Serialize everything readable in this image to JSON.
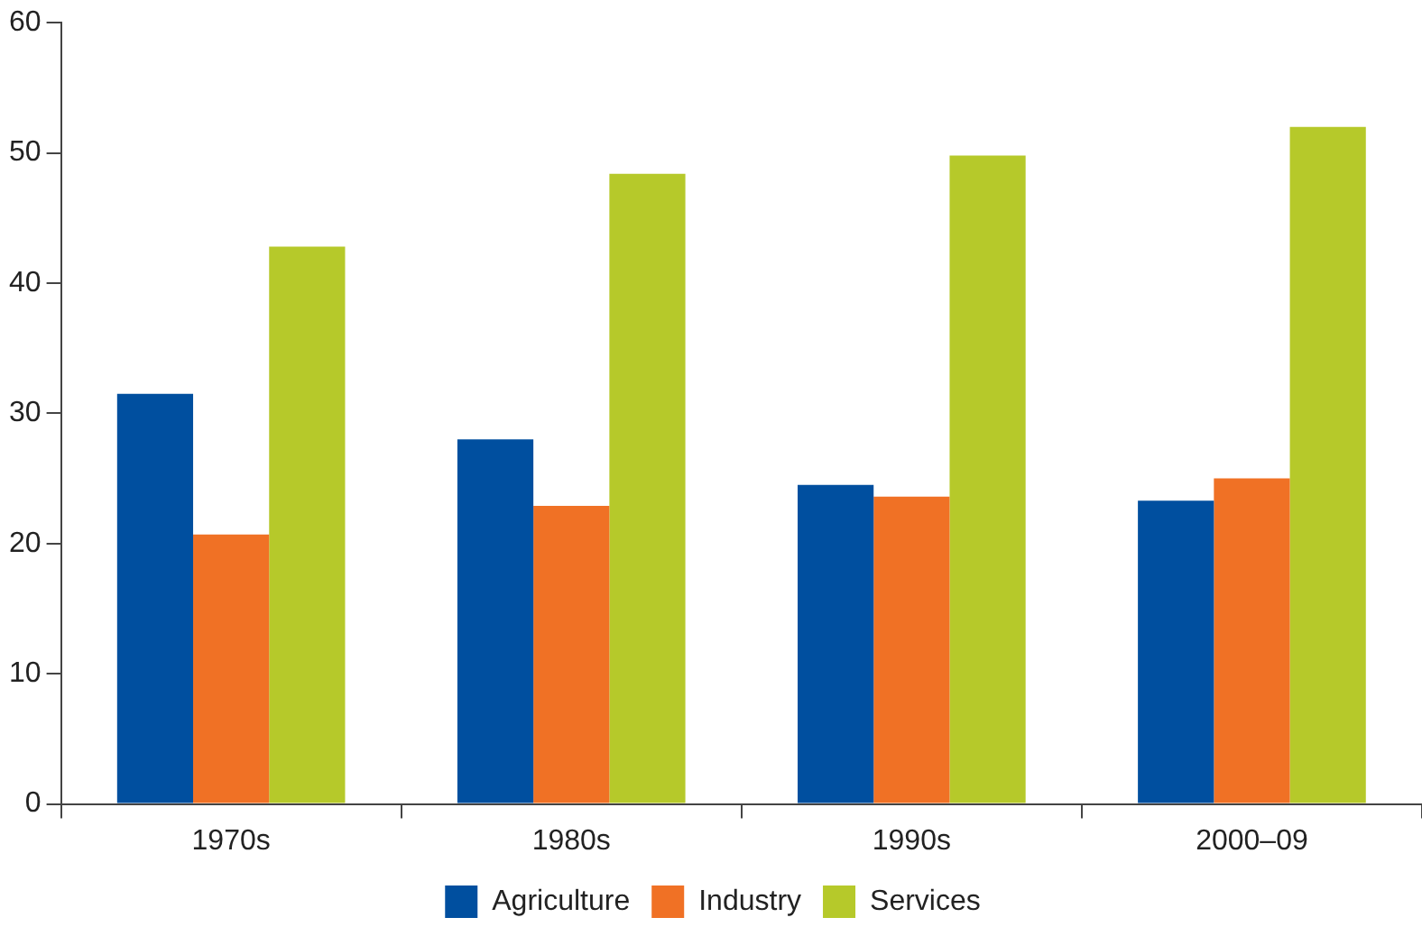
{
  "chart_data": {
    "type": "bar",
    "categories": [
      "1970s",
      "1980s",
      "1990s",
      "2000–09"
    ],
    "series": [
      {
        "name": "Agriculture",
        "color": "#004f9f",
        "values": [
          31.5,
          28.0,
          24.5,
          23.3
        ]
      },
      {
        "name": "Industry",
        "color": "#f07125",
        "values": [
          20.7,
          22.9,
          23.6,
          25.0
        ]
      },
      {
        "name": "Services",
        "color": "#b6c92a",
        "values": [
          42.8,
          48.4,
          49.8,
          52.0
        ]
      }
    ],
    "ylim": [
      0,
      60
    ],
    "yticks": [
      0,
      10,
      20,
      30,
      40,
      50,
      60
    ],
    "grid": false,
    "legend": "bottom"
  }
}
